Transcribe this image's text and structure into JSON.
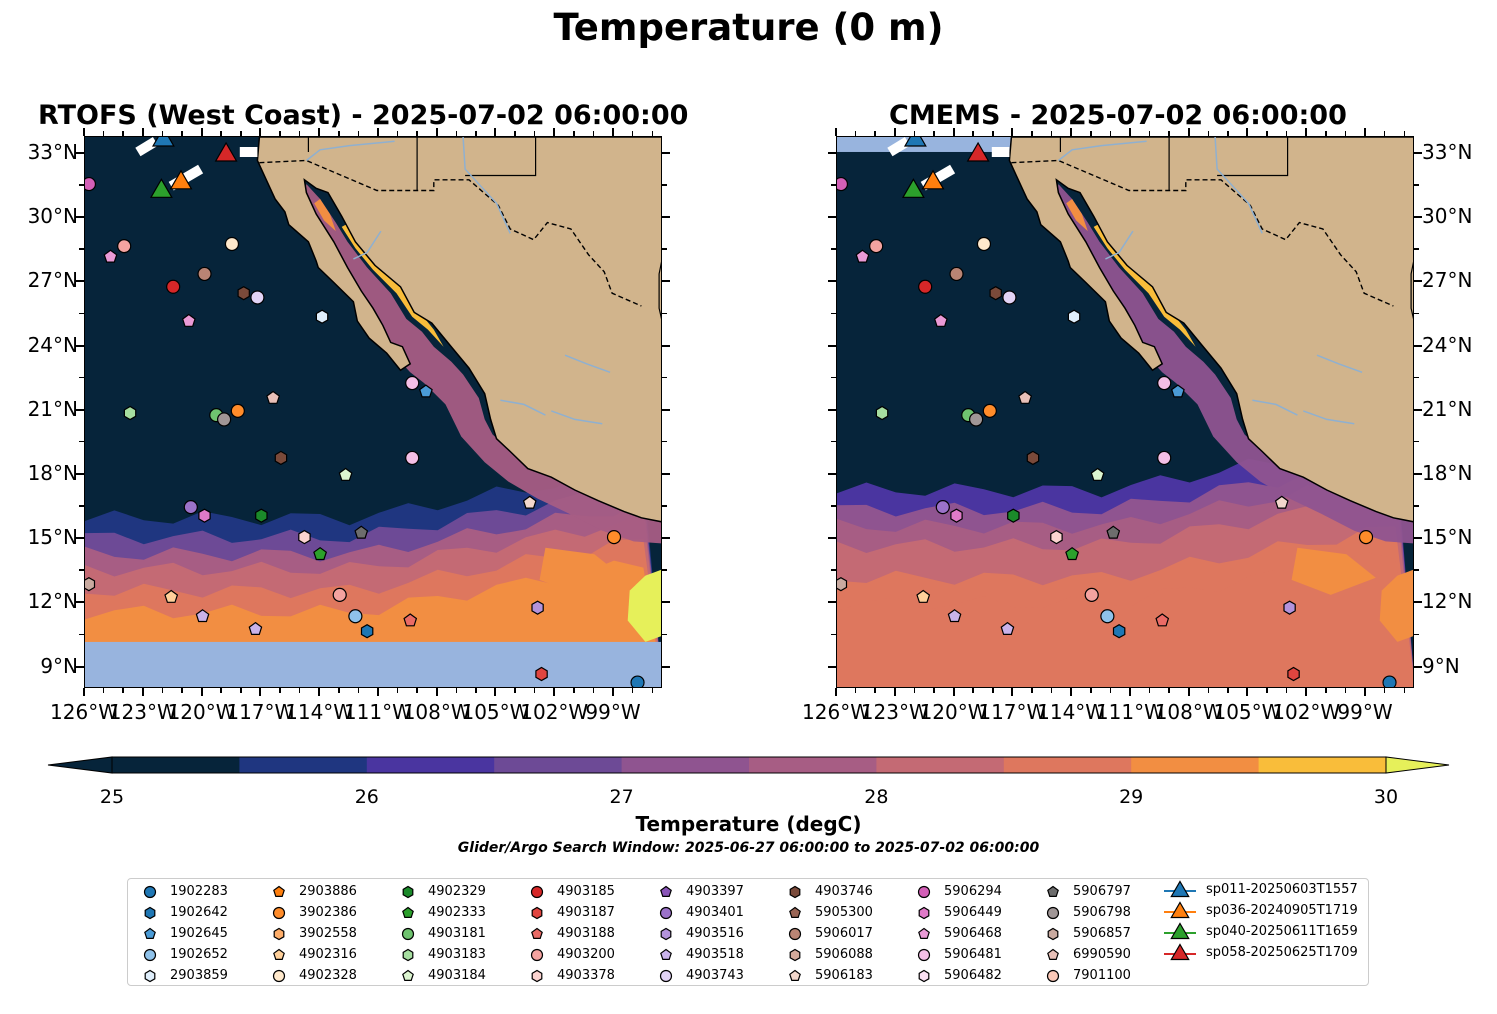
{
  "figure": {
    "title": "Temperature (0 m)",
    "colorbar_label": "Temperature (degC)",
    "search_window": "Glider/Argo Search Window: 2025-06-27 06:00:00 to 2025-07-02 06:00:00"
  },
  "panels": [
    {
      "title": "RTOFS (West Coast) - 2025-07-02 06:00:00"
    },
    {
      "title": "CMEMS - 2025-07-02 06:00:00"
    }
  ],
  "map_extent": {
    "lon_min": -126,
    "lon_max": -96.5,
    "lat_min": 8,
    "lat_max": 33.8
  },
  "axes": {
    "lat_ticks": [
      "33°N",
      "30°N",
      "27°N",
      "24°N",
      "21°N",
      "18°N",
      "15°N",
      "12°N",
      "9°N"
    ],
    "lon_ticks": [
      "126°W",
      "123°W",
      "120°W",
      "117°W",
      "114°W",
      "111°W",
      "108°W",
      "105°W",
      "102°W",
      "99°W"
    ]
  },
  "colorbar": {
    "ticks": [
      "25",
      "26",
      "27",
      "28",
      "29",
      "30"
    ],
    "vmin": 25,
    "vmax": 30,
    "step": 0.5,
    "colors": [
      "#06243a",
      "#1f3680",
      "#4a35a0",
      "#6d4a96",
      "#8f5490",
      "#a75d84",
      "#c46a74",
      "#de775e",
      "#f28e42",
      "#f9bd3a"
    ],
    "under": "#06243a",
    "over": "#e6f05a",
    "land_color": "#d1b48c",
    "missing_color": "#98b4de"
  },
  "legend": {
    "columns": [
      [
        {
          "id": "1902283",
          "marker": "circle",
          "color": "#1f77b4"
        },
        {
          "id": "1902642",
          "marker": "hexagon",
          "color": "#1f77b4"
        },
        {
          "id": "1902645",
          "marker": "pentagon",
          "color": "#4a9bd6"
        },
        {
          "id": "1902652",
          "marker": "circle",
          "color": "#8fc2ea"
        },
        {
          "id": "2903859",
          "marker": "hexagon",
          "color": "#dfeefb"
        }
      ],
      [
        {
          "id": "2903886",
          "marker": "pentagon",
          "color": "#ff7f0e"
        },
        {
          "id": "3902386",
          "marker": "circle",
          "color": "#ff8c2a"
        },
        {
          "id": "3902558",
          "marker": "hexagon",
          "color": "#ffae6a"
        },
        {
          "id": "4902316",
          "marker": "pentagon",
          "color": "#ffd09a"
        },
        {
          "id": "4902328",
          "marker": "circle",
          "color": "#ffe9cc"
        }
      ],
      [
        {
          "id": "4902329",
          "marker": "hexagon",
          "color": "#1b8a2a"
        },
        {
          "id": "4902333",
          "marker": "pentagon",
          "color": "#2ca02c"
        },
        {
          "id": "4903181",
          "marker": "circle",
          "color": "#6fc36f"
        },
        {
          "id": "4903183",
          "marker": "hexagon",
          "color": "#a6dea0"
        },
        {
          "id": "4903184",
          "marker": "pentagon",
          "color": "#dcf5d0"
        }
      ],
      [
        {
          "id": "4903185",
          "marker": "circle",
          "color": "#d62728"
        },
        {
          "id": "4903187",
          "marker": "hexagon",
          "color": "#e0453f"
        },
        {
          "id": "4903188",
          "marker": "pentagon",
          "color": "#ea6b66"
        },
        {
          "id": "4903200",
          "marker": "circle",
          "color": "#f4a3a0"
        },
        {
          "id": "4903378",
          "marker": "hexagon",
          "color": "#fbd3d0"
        }
      ],
      [
        {
          "id": "4903397",
          "marker": "pentagon",
          "color": "#8a55b8"
        },
        {
          "id": "4903401",
          "marker": "circle",
          "color": "#9b72c9"
        },
        {
          "id": "4903516",
          "marker": "hexagon",
          "color": "#b393db"
        },
        {
          "id": "4903518",
          "marker": "pentagon",
          "color": "#cab3ea"
        },
        {
          "id": "4903743",
          "marker": "circle",
          "color": "#e2d3f5"
        }
      ],
      [
        {
          "id": "4903746",
          "marker": "hexagon",
          "color": "#7a4a3a"
        },
        {
          "id": "5905300",
          "marker": "pentagon",
          "color": "#9a6555"
        },
        {
          "id": "5906017",
          "marker": "circle",
          "color": "#b98474"
        },
        {
          "id": "5906088",
          "marker": "hexagon",
          "color": "#d4aa9b"
        },
        {
          "id": "5906183",
          "marker": "pentagon",
          "color": "#f2d7cc"
        }
      ],
      [
        {
          "id": "5906294",
          "marker": "circle",
          "color": "#d35fb7"
        },
        {
          "id": "5906449",
          "marker": "hexagon",
          "color": "#e07ac8"
        },
        {
          "id": "5906468",
          "marker": "pentagon",
          "color": "#ea9ad6"
        },
        {
          "id": "5906481",
          "marker": "circle",
          "color": "#f4bfe6"
        },
        {
          "id": "5906482",
          "marker": "hexagon",
          "color": "#fbe0f3"
        }
      ],
      [
        {
          "id": "5906797",
          "marker": "pentagon",
          "color": "#6d6d6d"
        },
        {
          "id": "5906798",
          "marker": "circle",
          "color": "#a09696"
        },
        {
          "id": "5906857",
          "marker": "hexagon",
          "color": "#c9aaa0"
        },
        {
          "id": "6990590",
          "marker": "pentagon",
          "color": "#e8c0b8"
        },
        {
          "id": "7901100",
          "marker": "circle",
          "color": "#fcc9b8"
        }
      ]
    ],
    "gliders": [
      {
        "id": "sp011-20250603T1557",
        "color": "#1f77b4"
      },
      {
        "id": "sp036-20240905T1719",
        "color": "#ff7f0e"
      },
      {
        "id": "sp040-20250611T1659",
        "color": "#2ca02c"
      },
      {
        "id": "sp058-20250625T1709",
        "color": "#d62728"
      }
    ]
  },
  "floats": [
    {
      "lon": -125.8,
      "lat": 31.6,
      "id": "5906294"
    },
    {
      "lon": -124.7,
      "lat": 28.2,
      "id": "5906468"
    },
    {
      "lon": -124.0,
      "lat": 28.7,
      "id": "4903200"
    },
    {
      "lon": -121.5,
      "lat": 26.8,
      "id": "4903185"
    },
    {
      "lon": -119.9,
      "lat": 27.4,
      "id": "5906017"
    },
    {
      "lon": -120.7,
      "lat": 25.2,
      "id": "5906468"
    },
    {
      "lon": -118.5,
      "lat": 28.8,
      "id": "4902328"
    },
    {
      "lon": -117.9,
      "lat": 26.5,
      "id": "4903746"
    },
    {
      "lon": -117.2,
      "lat": 26.3,
      "id": "4903743"
    },
    {
      "lon": -113.9,
      "lat": 25.4,
      "id": "2903859"
    },
    {
      "lon": -123.7,
      "lat": 20.9,
      "id": "4903183"
    },
    {
      "lon": -119.3,
      "lat": 20.8,
      "id": "4903181"
    },
    {
      "lon": -118.9,
      "lat": 20.6,
      "id": "5906798"
    },
    {
      "lon": -118.2,
      "lat": 21.0,
      "id": "3902386"
    },
    {
      "lon": -116.4,
      "lat": 21.6,
      "id": "6990590"
    },
    {
      "lon": -116.0,
      "lat": 18.8,
      "id": "4903746"
    },
    {
      "lon": -112.7,
      "lat": 18.0,
      "id": "4903184"
    },
    {
      "lon": -109.3,
      "lat": 22.3,
      "id": "5906481"
    },
    {
      "lon": -108.6,
      "lat": 21.9,
      "id": "1902645"
    },
    {
      "lon": -109.3,
      "lat": 18.8,
      "id": "5906481"
    },
    {
      "lon": -120.6,
      "lat": 16.5,
      "id": "4903401"
    },
    {
      "lon": -119.9,
      "lat": 16.1,
      "id": "5906449"
    },
    {
      "lon": -117.0,
      "lat": 16.1,
      "id": "4902329"
    },
    {
      "lon": -114.8,
      "lat": 15.1,
      "id": "4903378"
    },
    {
      "lon": -111.9,
      "lat": 15.3,
      "id": "5906797"
    },
    {
      "lon": -114.0,
      "lat": 14.3,
      "id": "4902333"
    },
    {
      "lon": -103.3,
      "lat": 16.7,
      "id": "5906183"
    },
    {
      "lon": -99.0,
      "lat": 15.1,
      "id": "3902386"
    },
    {
      "lon": -125.8,
      "lat": 12.9,
      "id": "5906857"
    },
    {
      "lon": -121.6,
      "lat": 12.3,
      "id": "4902316"
    },
    {
      "lon": -120.0,
      "lat": 11.4,
      "id": "4903518"
    },
    {
      "lon": -117.3,
      "lat": 10.8,
      "id": "4903518"
    },
    {
      "lon": -113.0,
      "lat": 12.4,
      "id": "4903200"
    },
    {
      "lon": -112.2,
      "lat": 11.4,
      "id": "1902652"
    },
    {
      "lon": -111.6,
      "lat": 10.7,
      "id": "1902642"
    },
    {
      "lon": -109.4,
      "lat": 11.2,
      "id": "4903188"
    },
    {
      "lon": -102.9,
      "lat": 11.8,
      "id": "4903516"
    },
    {
      "lon": -102.7,
      "lat": 8.7,
      "id": "4903187"
    },
    {
      "lon": -97.8,
      "lat": 8.3,
      "id": "1902283"
    }
  ],
  "gliders_pos": [
    {
      "lon": -122.0,
      "lat": 33.8,
      "glider": "sp011-20250603T1557"
    },
    {
      "lon": -121.1,
      "lat": 31.8,
      "glider": "sp036-20240905T1719"
    },
    {
      "lon": -122.1,
      "lat": 31.4,
      "glider": "sp040-20250611T1659"
    },
    {
      "lon": -118.8,
      "lat": 33.1,
      "glider": "sp058-20250625T1709"
    }
  ]
}
